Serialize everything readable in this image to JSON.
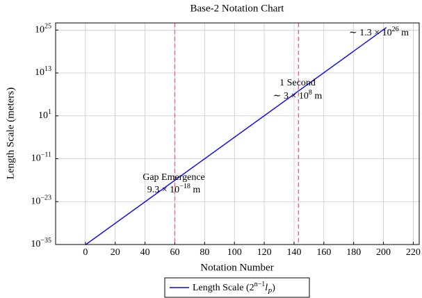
{
  "chart_data": {
    "type": "line",
    "title": "Base-2 Notation Chart",
    "x_label": "Notation Number",
    "y_label": "Length Scale (meters)",
    "log_y": true,
    "grid": true,
    "xlim": [
      -20,
      224
    ],
    "xticks": [
      0,
      20,
      40,
      60,
      80,
      100,
      120,
      140,
      160,
      180,
      200,
      220
    ],
    "ylim": [
      1e-35,
      1e+27
    ],
    "yticks": [
      {
        "value": 1e-35,
        "label": [
          {
            "text": "10"
          },
          {
            "text": "−35",
            "pos": "sup"
          }
        ]
      },
      {
        "value": 1e-23,
        "label": [
          {
            "text": "10"
          },
          {
            "text": "−23",
            "pos": "sup"
          }
        ]
      },
      {
        "value": 1e-11,
        "label": [
          {
            "text": "10"
          },
          {
            "text": "−11",
            "pos": "sup"
          }
        ]
      },
      {
        "value": 10,
        "label": [
          {
            "text": "10"
          },
          {
            "text": "1",
            "pos": "sup"
          }
        ]
      },
      {
        "value": 10000000000000.0,
        "label": [
          {
            "text": "10"
          },
          {
            "text": "13",
            "pos": "sup"
          }
        ]
      },
      {
        "value": 1e+25,
        "label": [
          {
            "text": "10"
          },
          {
            "text": "25",
            "pos": "sup"
          }
        ]
      }
    ],
    "series": [
      {
        "name": [
          {
            "text": "Length Scale (2"
          },
          {
            "text": "n−1",
            "pos": "sup"
          },
          {
            "text": "l",
            "italic": true
          },
          {
            "text": "P",
            "pos": "sub",
            "italic": true
          },
          {
            "text": ")"
          }
        ],
        "color": "#0000ff",
        "x": [
          0,
          202
        ],
        "values": [
          8.08e-36,
          5.19e+25
        ]
      }
    ],
    "vlines": {
      "color": "#ff5a5a",
      "x": [
        60,
        143
      ]
    },
    "annotation_color": "#ff0000",
    "annotations": [
      [
        [
          {
            "text": "Gap Emergence"
          }
        ],
        [
          {
            "text": "9.3 × 10"
          },
          {
            "text": "−18",
            "pos": "sup"
          },
          {
            "text": " m"
          }
        ]
      ],
      [
        [
          {
            "text": "1 Second"
          }
        ],
        [
          {
            "text": "∼ 3 × 10"
          },
          {
            "text": "8",
            "pos": "sup"
          },
          {
            "text": " m"
          }
        ]
      ],
      [
        [
          {
            "text": "∼ 1.3 × 10"
          },
          {
            "text": "26",
            "pos": "sup"
          },
          {
            "text": " m"
          }
        ]
      ]
    ]
  }
}
